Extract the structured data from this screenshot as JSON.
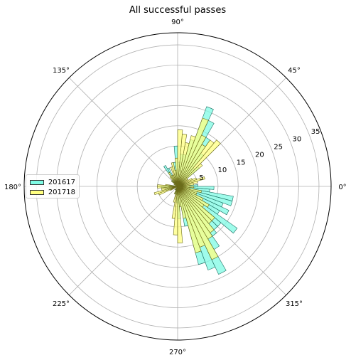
{
  "chart_data": {
    "type": "polar-bar",
    "title": "All successful passes",
    "angle_ticks": [
      "0°",
      "45°",
      "90°",
      "135°",
      "180°",
      "225°",
      "270°",
      "315°"
    ],
    "radial_ticks": [
      "5",
      "10",
      "15",
      "20",
      "25",
      "30",
      "35"
    ],
    "radial_tick_values": [
      5,
      10,
      15,
      20,
      25,
      30,
      35
    ],
    "rlim": [
      0,
      38
    ],
    "grid": true,
    "legend_position": "center-left",
    "bin_width_deg": 5,
    "series": [
      {
        "name": "201617",
        "color": "#7ffbe4",
        "edge_color": "#1a6b5f",
        "points": [
          {
            "angle": 2.5,
            "value": 5
          },
          {
            "angle": 7.5,
            "value": 2
          },
          {
            "angle": 12.5,
            "value": 1
          },
          {
            "angle": 17.5,
            "value": 3
          },
          {
            "angle": 22.5,
            "value": 2
          },
          {
            "angle": 27.5,
            "value": 2
          },
          {
            "angle": 42.5,
            "value": 7
          },
          {
            "angle": 47.5,
            "value": 6
          },
          {
            "angle": 52.5,
            "value": 10
          },
          {
            "angle": 57.5,
            "value": 14
          },
          {
            "angle": 62.5,
            "value": 18
          },
          {
            "angle": 67.5,
            "value": 21
          },
          {
            "angle": 72.5,
            "value": 12
          },
          {
            "angle": 77.5,
            "value": 8
          },
          {
            "angle": 82.5,
            "value": 8
          },
          {
            "angle": 87.5,
            "value": 6
          },
          {
            "angle": 92.5,
            "value": 10
          },
          {
            "angle": 97.5,
            "value": 6
          },
          {
            "angle": 102.5,
            "value": 3
          },
          {
            "angle": 107.5,
            "value": 3
          },
          {
            "angle": 117.5,
            "value": 5
          },
          {
            "angle": 122.5,
            "value": 6
          },
          {
            "angle": 127.5,
            "value": 2
          },
          {
            "angle": 137.5,
            "value": 2
          },
          {
            "angle": 172.5,
            "value": 2
          },
          {
            "angle": 177.5,
            "value": 3
          },
          {
            "angle": 182.5,
            "value": 4
          },
          {
            "angle": 187.5,
            "value": 3
          },
          {
            "angle": 197.5,
            "value": 3
          },
          {
            "angle": 202.5,
            "value": 2
          },
          {
            "angle": 237.5,
            "value": 1
          },
          {
            "angle": 252.5,
            "value": 2
          },
          {
            "angle": 262.5,
            "value": 2
          },
          {
            "angle": 267.5,
            "value": 4
          },
          {
            "angle": 272.5,
            "value": 8
          },
          {
            "angle": 277.5,
            "value": 5
          },
          {
            "angle": 282.5,
            "value": 10
          },
          {
            "angle": 287.5,
            "value": 20
          },
          {
            "angle": 292.5,
            "value": 22
          },
          {
            "angle": 297.5,
            "value": 24
          },
          {
            "angle": 302.5,
            "value": 18
          },
          {
            "angle": 307.5,
            "value": 15
          },
          {
            "angle": 312.5,
            "value": 14
          },
          {
            "angle": 317.5,
            "value": 14
          },
          {
            "angle": 322.5,
            "value": 18
          },
          {
            "angle": 327.5,
            "value": 12
          },
          {
            "angle": 332.5,
            "value": 14
          },
          {
            "angle": 337.5,
            "value": 12
          },
          {
            "angle": 342.5,
            "value": 14
          },
          {
            "angle": 347.5,
            "value": 14
          },
          {
            "angle": 352.5,
            "value": 8
          },
          {
            "angle": 357.5,
            "value": 9
          }
        ]
      },
      {
        "name": "201718",
        "color": "#ffff80",
        "edge_color": "#6b6b1a",
        "points": [
          {
            "angle": 2.5,
            "value": 3
          },
          {
            "angle": 7.5,
            "value": 4
          },
          {
            "angle": 12.5,
            "value": 5
          },
          {
            "angle": 17.5,
            "value": 7
          },
          {
            "angle": 22.5,
            "value": 5
          },
          {
            "angle": 27.5,
            "value": 4
          },
          {
            "angle": 32.5,
            "value": 3
          },
          {
            "angle": 37.5,
            "value": 3
          },
          {
            "angle": 42.5,
            "value": 8
          },
          {
            "angle": 47.5,
            "value": 15
          },
          {
            "angle": 52.5,
            "value": 14
          },
          {
            "angle": 57.5,
            "value": 12
          },
          {
            "angle": 62.5,
            "value": 14
          },
          {
            "angle": 67.5,
            "value": 18
          },
          {
            "angle": 72.5,
            "value": 13
          },
          {
            "angle": 77.5,
            "value": 11
          },
          {
            "angle": 82.5,
            "value": 13
          },
          {
            "angle": 87.5,
            "value": 14
          },
          {
            "angle": 92.5,
            "value": 7
          },
          {
            "angle": 97.5,
            "value": 4
          },
          {
            "angle": 102.5,
            "value": 6
          },
          {
            "angle": 107.5,
            "value": 5
          },
          {
            "angle": 112.5,
            "value": 3
          },
          {
            "angle": 117.5,
            "value": 3
          },
          {
            "angle": 122.5,
            "value": 4
          },
          {
            "angle": 127.5,
            "value": 3
          },
          {
            "angle": 137.5,
            "value": 2
          },
          {
            "angle": 152.5,
            "value": 1
          },
          {
            "angle": 172.5,
            "value": 3
          },
          {
            "angle": 177.5,
            "value": 5
          },
          {
            "angle": 182.5,
            "value": 5
          },
          {
            "angle": 187.5,
            "value": 4
          },
          {
            "angle": 192.5,
            "value": 4
          },
          {
            "angle": 197.5,
            "value": 6
          },
          {
            "angle": 202.5,
            "value": 5
          },
          {
            "angle": 207.5,
            "value": 2
          },
          {
            "angle": 232.5,
            "value": 1
          },
          {
            "angle": 247.5,
            "value": 2
          },
          {
            "angle": 257.5,
            "value": 4
          },
          {
            "angle": 262.5,
            "value": 8
          },
          {
            "angle": 267.5,
            "value": 12
          },
          {
            "angle": 272.5,
            "value": 14
          },
          {
            "angle": 277.5,
            "value": 5
          },
          {
            "angle": 282.5,
            "value": 8
          },
          {
            "angle": 287.5,
            "value": 17
          },
          {
            "angle": 292.5,
            "value": 16
          },
          {
            "angle": 297.5,
            "value": 20
          },
          {
            "angle": 302.5,
            "value": 15
          },
          {
            "angle": 307.5,
            "value": 14
          },
          {
            "angle": 312.5,
            "value": 12
          },
          {
            "angle": 317.5,
            "value": 12
          },
          {
            "angle": 322.5,
            "value": 8
          },
          {
            "angle": 327.5,
            "value": 9
          },
          {
            "angle": 332.5,
            "value": 7
          },
          {
            "angle": 337.5,
            "value": 5
          },
          {
            "angle": 342.5,
            "value": 5
          },
          {
            "angle": 347.5,
            "value": 6
          },
          {
            "angle": 352.5,
            "value": 3
          },
          {
            "angle": 357.5,
            "value": 4
          }
        ]
      }
    ]
  }
}
